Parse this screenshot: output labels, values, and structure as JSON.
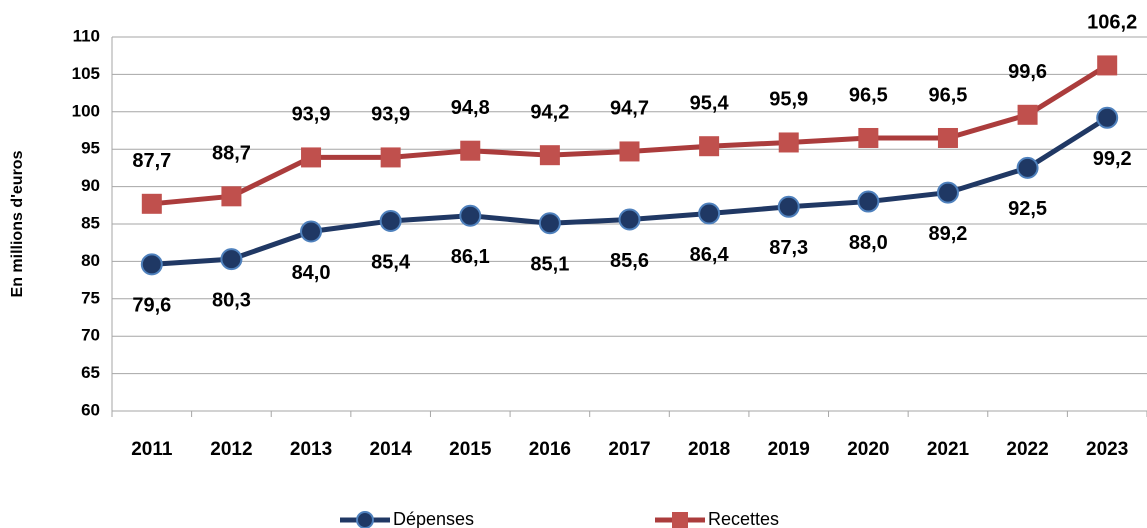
{
  "chart_data": {
    "type": "line",
    "y_label": "En millions d'euros",
    "categories": [
      "2011",
      "2012",
      "2013",
      "2014",
      "2015",
      "2016",
      "2017",
      "2018",
      "2019",
      "2020",
      "2021",
      "2022",
      "2023"
    ],
    "series": [
      {
        "name": "Dépenses",
        "color": "#203864",
        "marker_color": "#1f3864",
        "marker_edge": "#4f81bd",
        "marker": "circle",
        "values": [
          79.6,
          80.3,
          84.0,
          85.4,
          86.1,
          85.1,
          85.6,
          86.4,
          87.3,
          88.0,
          89.2,
          92.5,
          99.2
        ],
        "value_labels": [
          "79,6",
          "80,3",
          "84,0",
          "85,4",
          "86,1",
          "85,1",
          "85,6",
          "86,4",
          "87,3",
          "88,0",
          "89,2",
          "92,5",
          "99,2"
        ]
      },
      {
        "name": "Recettes",
        "color": "#ab3c3c",
        "marker_color": "#c0504d",
        "marker_edge": "#c0504d",
        "marker": "square",
        "values": [
          87.7,
          88.7,
          93.9,
          93.9,
          94.8,
          94.2,
          94.7,
          95.4,
          95.9,
          96.5,
          96.5,
          99.6,
          106.2
        ],
        "value_labels": [
          "87,7",
          "88,7",
          "93,9",
          "93,9",
          "94,8",
          "94,2",
          "94,7",
          "95,4",
          "95,9",
          "96,5",
          "96,5",
          "99,6",
          "106,2"
        ]
      }
    ],
    "ylim": [
      60,
      110
    ],
    "yticks": [
      60,
      65,
      70,
      75,
      80,
      85,
      90,
      95,
      100,
      105,
      110
    ],
    "grid": true,
    "legend": "bottom"
  }
}
